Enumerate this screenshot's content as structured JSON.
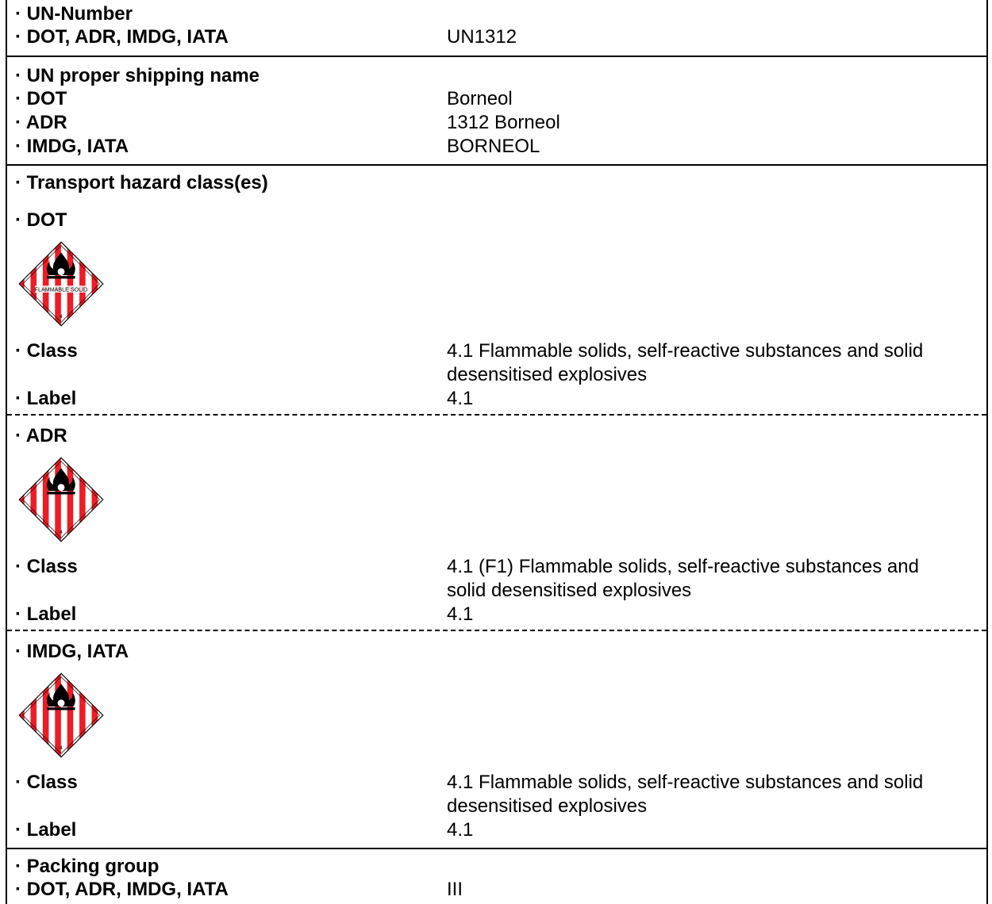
{
  "un_number": {
    "heading": "· UN-Number",
    "row": {
      "label": "· DOT, ADR, IMDG, IATA",
      "value": "UN1312"
    }
  },
  "shipping_name": {
    "heading": "· UN proper shipping name",
    "rows": [
      {
        "label": "· DOT",
        "value": "Borneol"
      },
      {
        "label": "· ADR",
        "value": "1312 Borneol"
      },
      {
        "label": "· IMDG, IATA",
        "value": "BORNEOL"
      }
    ]
  },
  "hazard": {
    "heading": "· Transport hazard class(es)",
    "blocks": [
      {
        "title": "· DOT",
        "placard_text": "FLAMMABLE SOLID",
        "placard_number": "4",
        "class_label": "· Class",
        "class_value_1": "4.1 Flammable solids, self-reactive substances and solid",
        "class_value_2": "desensitised explosives",
        "label_label": "· Label",
        "label_value": "4.1"
      },
      {
        "title": "· ADR",
        "placard_number": "4",
        "class_label": "· Class",
        "class_value_1": "4.1 (F1) Flammable solids, self-reactive substances and",
        "class_value_2": "solid desensitised explosives",
        "label_label": "· Label",
        "label_value": "4.1"
      },
      {
        "title": "· IMDG, IATA",
        "placard_number": "4",
        "class_label": "· Class",
        "class_value_1": "4.1 Flammable solids, self-reactive substances and solid",
        "class_value_2": "desensitised explosives",
        "label_label": "· Label",
        "label_value": "4.1"
      }
    ]
  },
  "packing": {
    "heading": "· Packing group",
    "row": {
      "label": "· DOT, ADR, IMDG, IATA",
      "value": "III"
    }
  },
  "colors": {
    "placard_red": "#ee1c24",
    "border": "#000000"
  },
  "icons": [
    "flame-icon"
  ]
}
